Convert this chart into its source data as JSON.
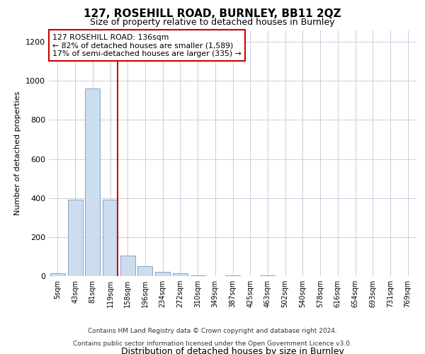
{
  "title": "127, ROSEHILL ROAD, BURNLEY, BB11 2QZ",
  "subtitle": "Size of property relative to detached houses in Burnley",
  "xlabel": "Distribution of detached houses by size in Burnley",
  "ylabel": "Number of detached properties",
  "categories": [
    "5sqm",
    "43sqm",
    "81sqm",
    "119sqm",
    "158sqm",
    "196sqm",
    "234sqm",
    "272sqm",
    "310sqm",
    "349sqm",
    "387sqm",
    "425sqm",
    "463sqm",
    "502sqm",
    "540sqm",
    "578sqm",
    "616sqm",
    "654sqm",
    "693sqm",
    "731sqm",
    "769sqm"
  ],
  "values": [
    15,
    390,
    960,
    390,
    105,
    50,
    20,
    15,
    5,
    0,
    5,
    0,
    5,
    0,
    0,
    0,
    0,
    0,
    0,
    0,
    0
  ],
  "bar_color": "#ccddf0",
  "bar_edge_color": "#7799bb",
  "property_line_color": "#cc0000",
  "annotation_line1": "127 ROSEHILL ROAD: 136sqm",
  "annotation_line2": "← 82% of detached houses are smaller (1,589)",
  "annotation_line3": "17% of semi-detached houses are larger (335) →",
  "annotation_box_color": "#cc0000",
  "ylim": [
    0,
    1260
  ],
  "yticks": [
    0,
    200,
    400,
    600,
    800,
    1000,
    1200
  ],
  "footer_line1": "Contains HM Land Registry data © Crown copyright and database right 2024.",
  "footer_line2": "Contains public sector information licensed under the Open Government Licence v3.0.",
  "bg_color": "#ffffff",
  "grid_color": "#ccccdd"
}
